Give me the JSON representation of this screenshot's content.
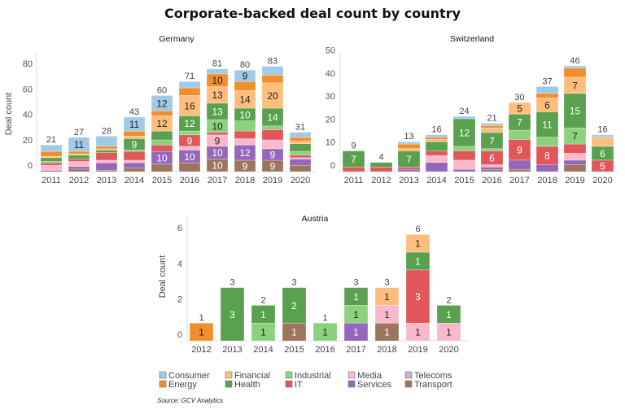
{
  "title": "Corporate-backed deal count by country",
  "source": "Source: GCV Analytics",
  "sectors": [
    {
      "name": "Transport",
      "color": "#9c755f"
    },
    {
      "name": "Services",
      "color": "#9467bd"
    },
    {
      "name": "Telecoms",
      "color": "#c5b0d5"
    },
    {
      "name": "Media",
      "color": "#f9b8cc"
    },
    {
      "name": "IT",
      "color": "#e15759"
    },
    {
      "name": "Industrial",
      "color": "#8cd17d"
    },
    {
      "name": "Health",
      "color": "#59a14f"
    },
    {
      "name": "Financial",
      "color": "#ffbe7d"
    },
    {
      "name": "Energy",
      "color": "#f28e2b"
    },
    {
      "name": "Consumer",
      "color": "#a0cbe8"
    }
  ],
  "legend": {
    "placement": "bottom",
    "rows": [
      [
        "Consumer",
        "Financial",
        "Industrial",
        "Media",
        "Telecoms"
      ],
      [
        "Energy",
        "Health",
        "IT",
        "Services",
        "Transport"
      ]
    ]
  },
  "chart_data": [
    {
      "type": "bar",
      "stacked": true,
      "title": "Germany",
      "ylabel": "Deal count",
      "ylim": [
        0,
        95
      ],
      "yticks": [
        0,
        20,
        40,
        60,
        80
      ],
      "label_min": 9,
      "categories": [
        "2011",
        "2012",
        "2013",
        "2014",
        "2015",
        "2016",
        "2017",
        "2018",
        "2019",
        "2020"
      ],
      "totals": [
        21,
        27,
        28,
        43,
        60,
        71,
        81,
        80,
        83,
        31
      ],
      "series": [
        {
          "name": "Transport",
          "values": [
            0,
            2,
            1,
            3,
            6,
            7,
            10,
            9,
            9,
            5
          ]
        },
        {
          "name": "Services",
          "values": [
            1,
            2,
            6,
            4,
            10,
            10,
            10,
            12,
            9,
            5
          ]
        },
        {
          "name": "Telecoms",
          "values": [
            0,
            0,
            0,
            0,
            0,
            0,
            0,
            0,
            0,
            0
          ]
        },
        {
          "name": "Media",
          "values": [
            4,
            4,
            2,
            2,
            0,
            3,
            9,
            5,
            7,
            1
          ]
        },
        {
          "name": "IT",
          "values": [
            2,
            2,
            6,
            7,
            5,
            9,
            2,
            6,
            8,
            2
          ]
        },
        {
          "name": "Industrial",
          "values": [
            1,
            0,
            0,
            1,
            4,
            3,
            10,
            8,
            3,
            3
          ]
        },
        {
          "name": "Health",
          "values": [
            3,
            3,
            2,
            9,
            7,
            12,
            13,
            10,
            14,
            6
          ]
        },
        {
          "name": "Financial",
          "values": [
            1,
            1,
            1,
            2,
            12,
            16,
            13,
            14,
            20,
            2
          ]
        },
        {
          "name": "Energy",
          "values": [
            4,
            2,
            2,
            4,
            4,
            6,
            10,
            7,
            6,
            3
          ]
        },
        {
          "name": "Consumer",
          "values": [
            5,
            11,
            8,
            11,
            12,
            5,
            4,
            9,
            7,
            4
          ]
        }
      ]
    },
    {
      "type": "bar",
      "stacked": true,
      "title": "Switzerland",
      "ylabel": "",
      "ylim": [
        0,
        52
      ],
      "yticks": [
        0,
        10,
        20,
        30,
        40,
        50
      ],
      "label_min": 5,
      "categories": [
        "2011",
        "2012",
        "2013",
        "2014",
        "2015",
        "2016",
        "2017",
        "2018",
        "2019",
        "2020"
      ],
      "totals": [
        9,
        4,
        13,
        16,
        24,
        21,
        30,
        37,
        46,
        16
      ],
      "series": [
        {
          "name": "Transport",
          "values": [
            0,
            0,
            0,
            0,
            0,
            1,
            1,
            0,
            3,
            0
          ]
        },
        {
          "name": "Services",
          "values": [
            0,
            0,
            1,
            4,
            1,
            1,
            4,
            3,
            2,
            0
          ]
        },
        {
          "name": "Telecoms",
          "values": [
            0,
            0,
            0,
            0,
            0,
            0,
            0,
            0,
            0,
            0
          ]
        },
        {
          "name": "Media",
          "values": [
            0,
            0,
            0,
            3,
            4,
            1,
            0,
            0,
            3,
            0
          ]
        },
        {
          "name": "IT",
          "values": [
            2,
            2,
            1,
            2,
            4,
            6,
            9,
            8,
            4,
            5
          ]
        },
        {
          "name": "Industrial",
          "values": [
            0,
            0,
            0,
            0,
            2,
            1,
            4,
            4,
            7,
            0
          ]
        },
        {
          "name": "Health",
          "values": [
            7,
            2,
            7,
            4,
            12,
            7,
            7,
            11,
            15,
            6
          ]
        },
        {
          "name": "Financial",
          "values": [
            0,
            0,
            1,
            1,
            0,
            2,
            5,
            6,
            7,
            4
          ]
        },
        {
          "name": "Energy",
          "values": [
            0,
            0,
            2,
            1,
            0,
            1,
            0,
            2,
            4,
            0
          ]
        },
        {
          "name": "Consumer",
          "values": [
            0,
            0,
            1,
            1,
            1,
            1,
            0,
            3,
            1,
            1
          ]
        }
      ]
    },
    {
      "type": "bar",
      "stacked": true,
      "title": "Austria",
      "ylabel": "Deal count",
      "ylim": [
        0,
        7
      ],
      "yticks": [
        0,
        2,
        4,
        6
      ],
      "label_min": 1,
      "categories": [
        "2012",
        "2013",
        "2014",
        "2015",
        "2016",
        "2017",
        "2018",
        "2019",
        "2020"
      ],
      "totals": [
        1,
        3,
        2,
        3,
        1,
        3,
        3,
        6,
        2
      ],
      "series": [
        {
          "name": "Transport",
          "values": [
            0,
            0,
            0,
            1,
            0,
            0,
            1,
            0,
            0
          ]
        },
        {
          "name": "Services",
          "values": [
            0,
            0,
            0,
            0,
            0,
            1,
            0,
            0,
            0
          ]
        },
        {
          "name": "Telecoms",
          "values": [
            0,
            0,
            0,
            0,
            0,
            0,
            0,
            0,
            0
          ]
        },
        {
          "name": "Media",
          "values": [
            0,
            0,
            0,
            0,
            0,
            0,
            1,
            1,
            1
          ]
        },
        {
          "name": "IT",
          "values": [
            0,
            0,
            0,
            0,
            0,
            0,
            0,
            3,
            0
          ]
        },
        {
          "name": "Industrial",
          "values": [
            0,
            0,
            1,
            0,
            1,
            1,
            0,
            0,
            0
          ]
        },
        {
          "name": "Health",
          "values": [
            0,
            3,
            1,
            2,
            0,
            1,
            0,
            1,
            1
          ]
        },
        {
          "name": "Financial",
          "values": [
            0,
            0,
            0,
            0,
            0,
            0,
            1,
            1,
            0
          ]
        },
        {
          "name": "Energy",
          "values": [
            1,
            0,
            0,
            0,
            0,
            0,
            0,
            0,
            0
          ]
        },
        {
          "name": "Consumer",
          "values": [
            0,
            0,
            0,
            0,
            0,
            0,
            0,
            0,
            0
          ]
        }
      ]
    }
  ]
}
